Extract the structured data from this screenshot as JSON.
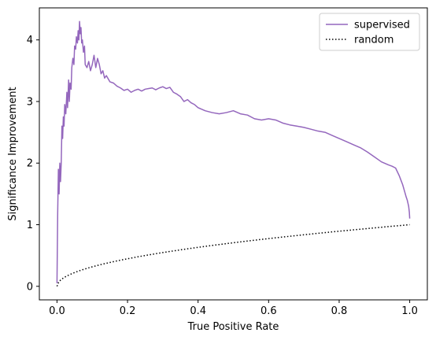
{
  "chart_data": {
    "type": "line",
    "title": "",
    "xlabel": "True Positive Rate",
    "ylabel": "Significance Improvement",
    "xlim": [
      -0.05,
      1.05
    ],
    "ylim": [
      -0.22,
      4.52
    ],
    "xticks": [
      0.0,
      0.2,
      0.4,
      0.6,
      0.8,
      1.0
    ],
    "xtick_labels": [
      "0.0",
      "0.2",
      "0.4",
      "0.6",
      "0.8",
      "1.0"
    ],
    "yticks": [
      0,
      1,
      2,
      3,
      4
    ],
    "ytick_labels": [
      "0",
      "1",
      "2",
      "3",
      "4"
    ],
    "legend_position": "top-right",
    "series": [
      {
        "name": "supervised",
        "color": "#9467bd",
        "style": "solid",
        "x": [
          0.0,
          0.002,
          0.004,
          0.006,
          0.008,
          0.01,
          0.012,
          0.014,
          0.016,
          0.018,
          0.02,
          0.022,
          0.025,
          0.028,
          0.03,
          0.033,
          0.035,
          0.037,
          0.04,
          0.042,
          0.045,
          0.048,
          0.05,
          0.053,
          0.055,
          0.058,
          0.06,
          0.062,
          0.064,
          0.066,
          0.068,
          0.07,
          0.072,
          0.075,
          0.078,
          0.08,
          0.085,
          0.09,
          0.095,
          0.1,
          0.105,
          0.11,
          0.115,
          0.12,
          0.125,
          0.13,
          0.135,
          0.14,
          0.15,
          0.16,
          0.17,
          0.18,
          0.19,
          0.2,
          0.21,
          0.22,
          0.23,
          0.24,
          0.25,
          0.26,
          0.27,
          0.28,
          0.29,
          0.3,
          0.31,
          0.32,
          0.33,
          0.34,
          0.35,
          0.36,
          0.37,
          0.38,
          0.39,
          0.4,
          0.42,
          0.44,
          0.46,
          0.48,
          0.5,
          0.52,
          0.54,
          0.56,
          0.58,
          0.6,
          0.62,
          0.64,
          0.66,
          0.68,
          0.7,
          0.72,
          0.74,
          0.76,
          0.78,
          0.8,
          0.82,
          0.84,
          0.86,
          0.88,
          0.9,
          0.92,
          0.94,
          0.95,
          0.96,
          0.97,
          0.98,
          0.985,
          0.99,
          0.993,
          0.995,
          0.997,
          0.999,
          1.0
        ],
        "y": [
          0.05,
          1.2,
          1.9,
          1.5,
          2.0,
          1.7,
          2.0,
          2.6,
          2.4,
          2.75,
          2.6,
          2.95,
          2.8,
          3.15,
          2.9,
          3.35,
          3.0,
          3.3,
          3.2,
          3.55,
          3.7,
          3.6,
          3.9,
          3.85,
          4.05,
          3.95,
          4.15,
          4.0,
          4.3,
          4.1,
          4.2,
          3.95,
          4.0,
          3.8,
          3.9,
          3.6,
          3.55,
          3.65,
          3.5,
          3.6,
          3.75,
          3.55,
          3.7,
          3.6,
          3.45,
          3.5,
          3.38,
          3.42,
          3.32,
          3.3,
          3.25,
          3.22,
          3.18,
          3.2,
          3.15,
          3.18,
          3.2,
          3.17,
          3.2,
          3.21,
          3.22,
          3.19,
          3.22,
          3.24,
          3.21,
          3.23,
          3.15,
          3.12,
          3.08,
          3.0,
          3.03,
          2.98,
          2.95,
          2.9,
          2.85,
          2.82,
          2.8,
          2.82,
          2.85,
          2.8,
          2.78,
          2.72,
          2.7,
          2.72,
          2.7,
          2.65,
          2.62,
          2.6,
          2.58,
          2.55,
          2.52,
          2.5,
          2.45,
          2.4,
          2.35,
          2.3,
          2.25,
          2.18,
          2.1,
          2.02,
          1.97,
          1.95,
          1.92,
          1.8,
          1.65,
          1.55,
          1.45,
          1.4,
          1.35,
          1.3,
          1.2,
          1.1
        ]
      },
      {
        "name": "random",
        "color": "#000000",
        "style": "dotted",
        "function": "sqrt",
        "x": [
          0.0,
          0.01,
          0.02,
          0.04,
          0.06,
          0.08,
          0.1,
          0.15,
          0.2,
          0.25,
          0.3,
          0.35,
          0.4,
          0.45,
          0.5,
          0.55,
          0.6,
          0.65,
          0.7,
          0.75,
          0.8,
          0.85,
          0.9,
          0.95,
          1.0
        ],
        "y": [
          0.0,
          0.1,
          0.141,
          0.2,
          0.245,
          0.283,
          0.316,
          0.387,
          0.447,
          0.5,
          0.548,
          0.592,
          0.632,
          0.671,
          0.707,
          0.742,
          0.775,
          0.806,
          0.837,
          0.866,
          0.894,
          0.922,
          0.949,
          0.975,
          1.0
        ]
      }
    ]
  }
}
